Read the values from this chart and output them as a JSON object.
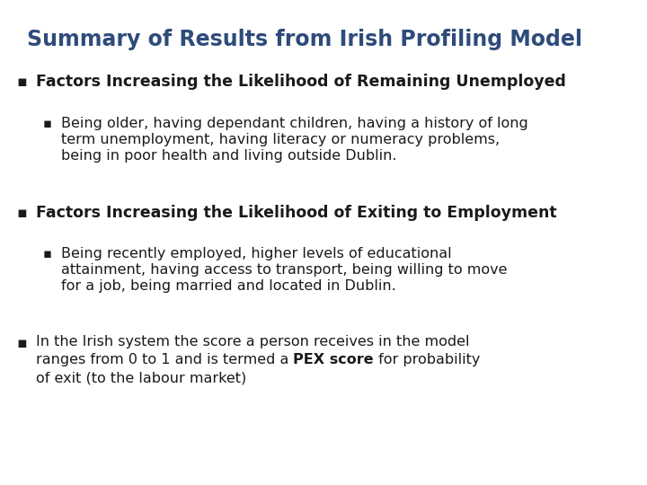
{
  "title": "Summary of Results from Irish Profiling Model",
  "title_color": "#2E4B7A",
  "title_fontsize": 17,
  "background_color": "#FFFFFF",
  "bullet1_header": "Factors Increasing the Likelihood of Remaining Unemployed",
  "bullet1_body_line1": "Being older, having dependant children, having a history of long",
  "bullet1_body_line2": "term unemployment, having literacy or numeracy problems,",
  "bullet1_body_line3": "being in poor health and living outside Dublin.",
  "bullet2_header": "Factors Increasing the Likelihood of Exiting to Employment",
  "bullet2_body_line1": "Being recently employed, higher levels of educational",
  "bullet2_body_line2": "attainment, having access to transport, being willing to move",
  "bullet2_body_line3": "for a job, being married and located in Dublin.",
  "bullet3_line1": "In the Irish system the score a person receives in the model",
  "bullet3_line2_pre": "ranges from 0 to 1 and is termed a ",
  "bullet3_line2_bold": "PEX score",
  "bullet3_line2_post": " for probability",
  "bullet3_line3": "of exit (to the labour market)",
  "header_fontsize": 12.5,
  "body_fontsize": 11.5,
  "text_color": "#1a1a1a",
  "bullet_color": "#1a1a1a"
}
